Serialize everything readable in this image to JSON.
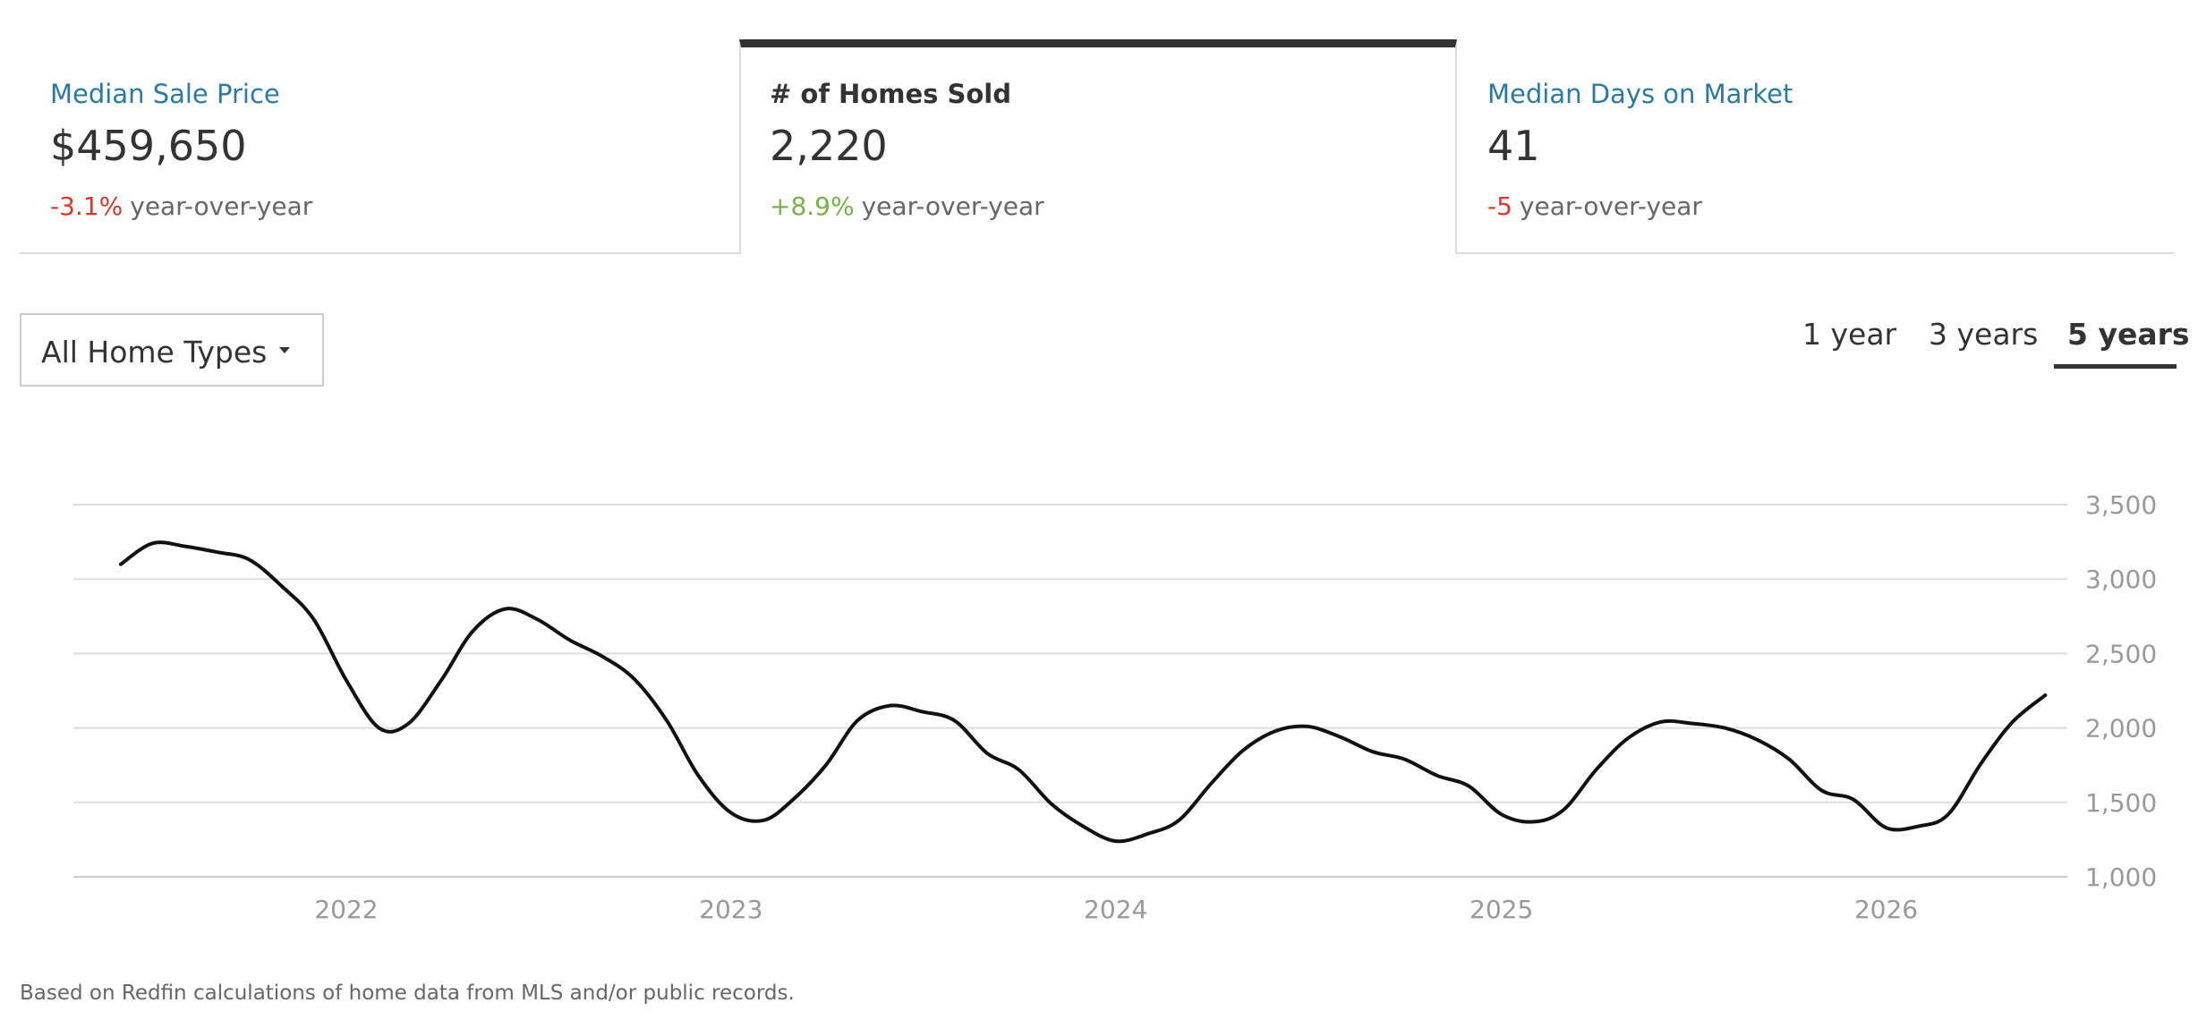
{
  "metrics": [
    {
      "label": "Median Sale Price",
      "value": "$459,650",
      "change": "-3.1%",
      "change_suffix": "year-over-year",
      "change_direction": "down",
      "selected": false
    },
    {
      "label": "# of Homes Sold",
      "value": "2,220",
      "change": "+8.9%",
      "change_suffix": "year-over-year",
      "change_direction": "up",
      "selected": true
    },
    {
      "label": "Median Days on Market",
      "value": "41",
      "change": "-5",
      "change_suffix": "year-over-year",
      "change_direction": "down",
      "selected": false
    }
  ],
  "filters": {
    "home_type": "All Home Types",
    "caret_icon": "caret-down-icon"
  },
  "range_tabs": {
    "options": [
      "1 year",
      "3 years",
      "5 years"
    ],
    "selected": "5 years"
  },
  "footnote": "Based on Redfin calculations of home data from MLS and/or public records.",
  "colors": {
    "link": "#2c7a9e",
    "negative": "#d9372a",
    "positive": "#78b04a",
    "line": "#111111",
    "selected_tab_bar": "#333333"
  },
  "chart_data": {
    "type": "line",
    "x_tick_labels": [
      "2022",
      "2023",
      "2024",
      "2025",
      "2026"
    ],
    "y_tick_labels": [
      "1,000",
      "1,500",
      "2,000",
      "2,500",
      "3,000",
      "3,500"
    ],
    "y_ticks": [
      1000,
      1500,
      2000,
      2500,
      3000,
      3500
    ],
    "ylim": [
      1000,
      3500
    ],
    "xlim": [
      "2021-04-17",
      "2026-06-22"
    ],
    "grid": true,
    "y_axis_side": "right",
    "series": [
      {
        "values": [
          {
            "x": "2021-06-01",
            "y": 3100
          },
          {
            "x": "2021-07-01",
            "y": 3240
          },
          {
            "x": "2021-08-01",
            "y": 3220
          },
          {
            "x": "2021-09-01",
            "y": 3180
          },
          {
            "x": "2021-10-01",
            "y": 3130
          },
          {
            "x": "2021-11-01",
            "y": 2950
          },
          {
            "x": "2021-12-01",
            "y": 2730
          },
          {
            "x": "2022-01-01",
            "y": 2320
          },
          {
            "x": "2022-02-01",
            "y": 2000
          },
          {
            "x": "2022-03-01",
            "y": 2030
          },
          {
            "x": "2022-04-01",
            "y": 2320
          },
          {
            "x": "2022-05-01",
            "y": 2650
          },
          {
            "x": "2022-06-01",
            "y": 2800
          },
          {
            "x": "2022-07-01",
            "y": 2730
          },
          {
            "x": "2022-08-01",
            "y": 2590
          },
          {
            "x": "2022-09-01",
            "y": 2480
          },
          {
            "x": "2022-10-01",
            "y": 2330
          },
          {
            "x": "2022-11-01",
            "y": 2050
          },
          {
            "x": "2022-12-01",
            "y": 1680
          },
          {
            "x": "2023-01-01",
            "y": 1430
          },
          {
            "x": "2023-02-01",
            "y": 1380
          },
          {
            "x": "2023-03-01",
            "y": 1520
          },
          {
            "x": "2023-04-01",
            "y": 1750
          },
          {
            "x": "2023-05-01",
            "y": 2050
          },
          {
            "x": "2023-06-01",
            "y": 2150
          },
          {
            "x": "2023-07-01",
            "y": 2110
          },
          {
            "x": "2023-08-01",
            "y": 2050
          },
          {
            "x": "2023-09-01",
            "y": 1830
          },
          {
            "x": "2023-10-01",
            "y": 1720
          },
          {
            "x": "2023-11-01",
            "y": 1490
          },
          {
            "x": "2023-12-01",
            "y": 1340
          },
          {
            "x": "2024-01-01",
            "y": 1240
          },
          {
            "x": "2024-02-01",
            "y": 1290
          },
          {
            "x": "2024-03-01",
            "y": 1380
          },
          {
            "x": "2024-04-01",
            "y": 1630
          },
          {
            "x": "2024-05-01",
            "y": 1850
          },
          {
            "x": "2024-06-01",
            "y": 1980
          },
          {
            "x": "2024-07-01",
            "y": 2010
          },
          {
            "x": "2024-08-01",
            "y": 1940
          },
          {
            "x": "2024-09-01",
            "y": 1840
          },
          {
            "x": "2024-10-01",
            "y": 1790
          },
          {
            "x": "2024-11-01",
            "y": 1680
          },
          {
            "x": "2024-12-01",
            "y": 1610
          },
          {
            "x": "2025-01-01",
            "y": 1420
          },
          {
            "x": "2025-02-01",
            "y": 1370
          },
          {
            "x": "2025-03-01",
            "y": 1450
          },
          {
            "x": "2025-04-01",
            "y": 1720
          },
          {
            "x": "2025-05-01",
            "y": 1930
          },
          {
            "x": "2025-06-01",
            "y": 2040
          },
          {
            "x": "2025-07-01",
            "y": 2030
          },
          {
            "x": "2025-08-01",
            "y": 2000
          },
          {
            "x": "2025-09-01",
            "y": 1920
          },
          {
            "x": "2025-10-01",
            "y": 1790
          },
          {
            "x": "2025-11-01",
            "y": 1580
          },
          {
            "x": "2025-12-01",
            "y": 1520
          },
          {
            "x": "2026-01-01",
            "y": 1330
          },
          {
            "x": "2026-02-01",
            "y": 1340
          },
          {
            "x": "2026-03-01",
            "y": 1420
          },
          {
            "x": "2026-04-01",
            "y": 1760
          },
          {
            "x": "2026-05-01",
            "y": 2040
          },
          {
            "x": "2026-06-01",
            "y": 2220
          }
        ]
      }
    ]
  }
}
